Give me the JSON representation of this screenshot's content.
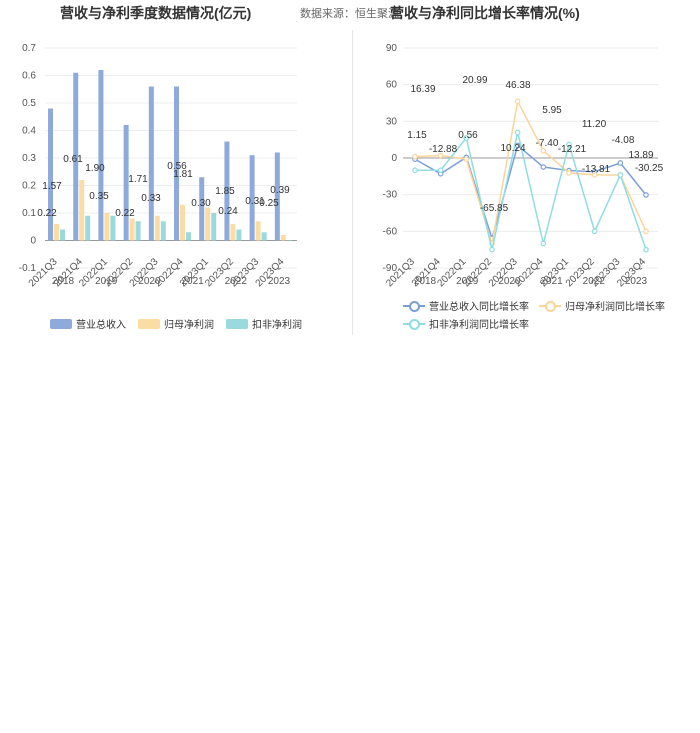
{
  "header": {
    "left_title": "营收与净利季度数据情况(亿元)",
    "source": "数据来源：恒生聚源",
    "right_title": "营收与净利同比增长率情况(%)"
  },
  "chart_data": [
    {
      "type": "bar",
      "title": "营收与净利季度数据情况(亿元)",
      "y_ticks": [
        "0.7",
        "0.6",
        "0.5",
        "0.4",
        "0.3",
        "0.2",
        "0.1",
        "0",
        "-0.1"
      ],
      "ylim": [
        -0.1,
        0.7
      ],
      "x_tick_labels": [
        "2021Q3",
        "2021Q4",
        "2022Q1",
        "2022Q2",
        "2022Q3",
        "2022Q4",
        "2023Q1",
        "2023Q2",
        "2023Q3",
        "2023Q4"
      ],
      "year_labels": [
        "2018",
        "2019",
        "2020",
        "2021",
        "2022",
        "2023"
      ],
      "categories": [
        "2021Q3",
        "2021Q4",
        "2022Q1",
        "2022Q2",
        "2022Q3",
        "2022Q4",
        "2023Q1",
        "2023Q2",
        "2023Q3",
        "2023Q4"
      ],
      "series": [
        {
          "name": "营业总收入",
          "color": "#8eaadb",
          "values": [
            0.48,
            0.61,
            0.62,
            0.42,
            0.56,
            0.56,
            0.23,
            0.36,
            0.31,
            0.32
          ]
        },
        {
          "name": "归母净利润",
          "color": "#fcdca5",
          "values": [
            0.06,
            0.22,
            0.1,
            0.08,
            0.09,
            0.13,
            0.12,
            0.06,
            0.07,
            0.02
          ]
        },
        {
          "name": "扣非净利润",
          "color": "#9bdadc",
          "values": [
            0.04,
            0.09,
            0.09,
            0.07,
            0.07,
            0.03,
            0.1,
            0.04,
            0.03,
            0.0
          ]
        }
      ],
      "annotations": [
        "1.57",
        "0.22",
        "0.61",
        "1.90",
        "0.35",
        "0.22",
        "1.71",
        "0.33",
        "0.56",
        "1.81",
        "0.30",
        "1.85",
        "0.24",
        "0.31",
        "0.25",
        "0.39"
      ]
    },
    {
      "type": "line",
      "title": "营收与净利同比增长率情况(%)",
      "y_ticks": [
        "90",
        "60",
        "30",
        "0",
        "-30",
        "-60",
        "-90"
      ],
      "ylim": [
        -90,
        90
      ],
      "x_tick_labels": [
        "2021Q3",
        "2021Q4",
        "2022Q1",
        "2022Q2",
        "2022Q3",
        "2022Q4",
        "2023Q1",
        "2023Q2",
        "2023Q3",
        "2023Q4"
      ],
      "year_labels": [
        "2018",
        "2019",
        "2020",
        "2021",
        "2022",
        "2023"
      ],
      "categories": [
        "2021Q3",
        "2021Q4",
        "2022Q1",
        "2022Q2",
        "2022Q3",
        "2022Q4",
        "2023Q1",
        "2023Q2",
        "2023Q3",
        "2023Q4"
      ],
      "series": [
        {
          "name": "营业总收入同比增长率",
          "color": "#7c9fd6",
          "values": [
            -1,
            -12.88,
            0.56,
            -65.85,
            10.24,
            -7.4,
            -10.28,
            -11.2,
            -4.08,
            -30.25
          ]
        },
        {
          "name": "归母净利润同比增长率",
          "color": "#fbd49b",
          "values": [
            1.15,
            2,
            -1,
            -70,
            46.38,
            5.95,
            -12.21,
            -13.81,
            -13.89,
            -60
          ]
        },
        {
          "name": "扣非净利润同比增长率",
          "color": "#8fdde2",
          "values": [
            -10,
            -10,
            16.39,
            -75,
            20.99,
            -70,
            11.2,
            -60,
            -13.89,
            -75
          ]
        }
      ],
      "annotations": [
        "16.39",
        "20.99",
        "1.15",
        "0.56",
        "-12.88",
        "46.38",
        "5.95",
        "11.20",
        "10.24",
        "-7.40",
        "-12.21",
        "-4.08",
        "13.89",
        "-13.81",
        "-30.25",
        "-65.85"
      ]
    }
  ],
  "legend_left": [
    "营业总收入",
    "归母净利润",
    "扣非净利润"
  ],
  "legend_right": [
    "营业总收入同比增长率",
    "归母净利润同比增长率",
    "扣非净利润同比增长率"
  ]
}
